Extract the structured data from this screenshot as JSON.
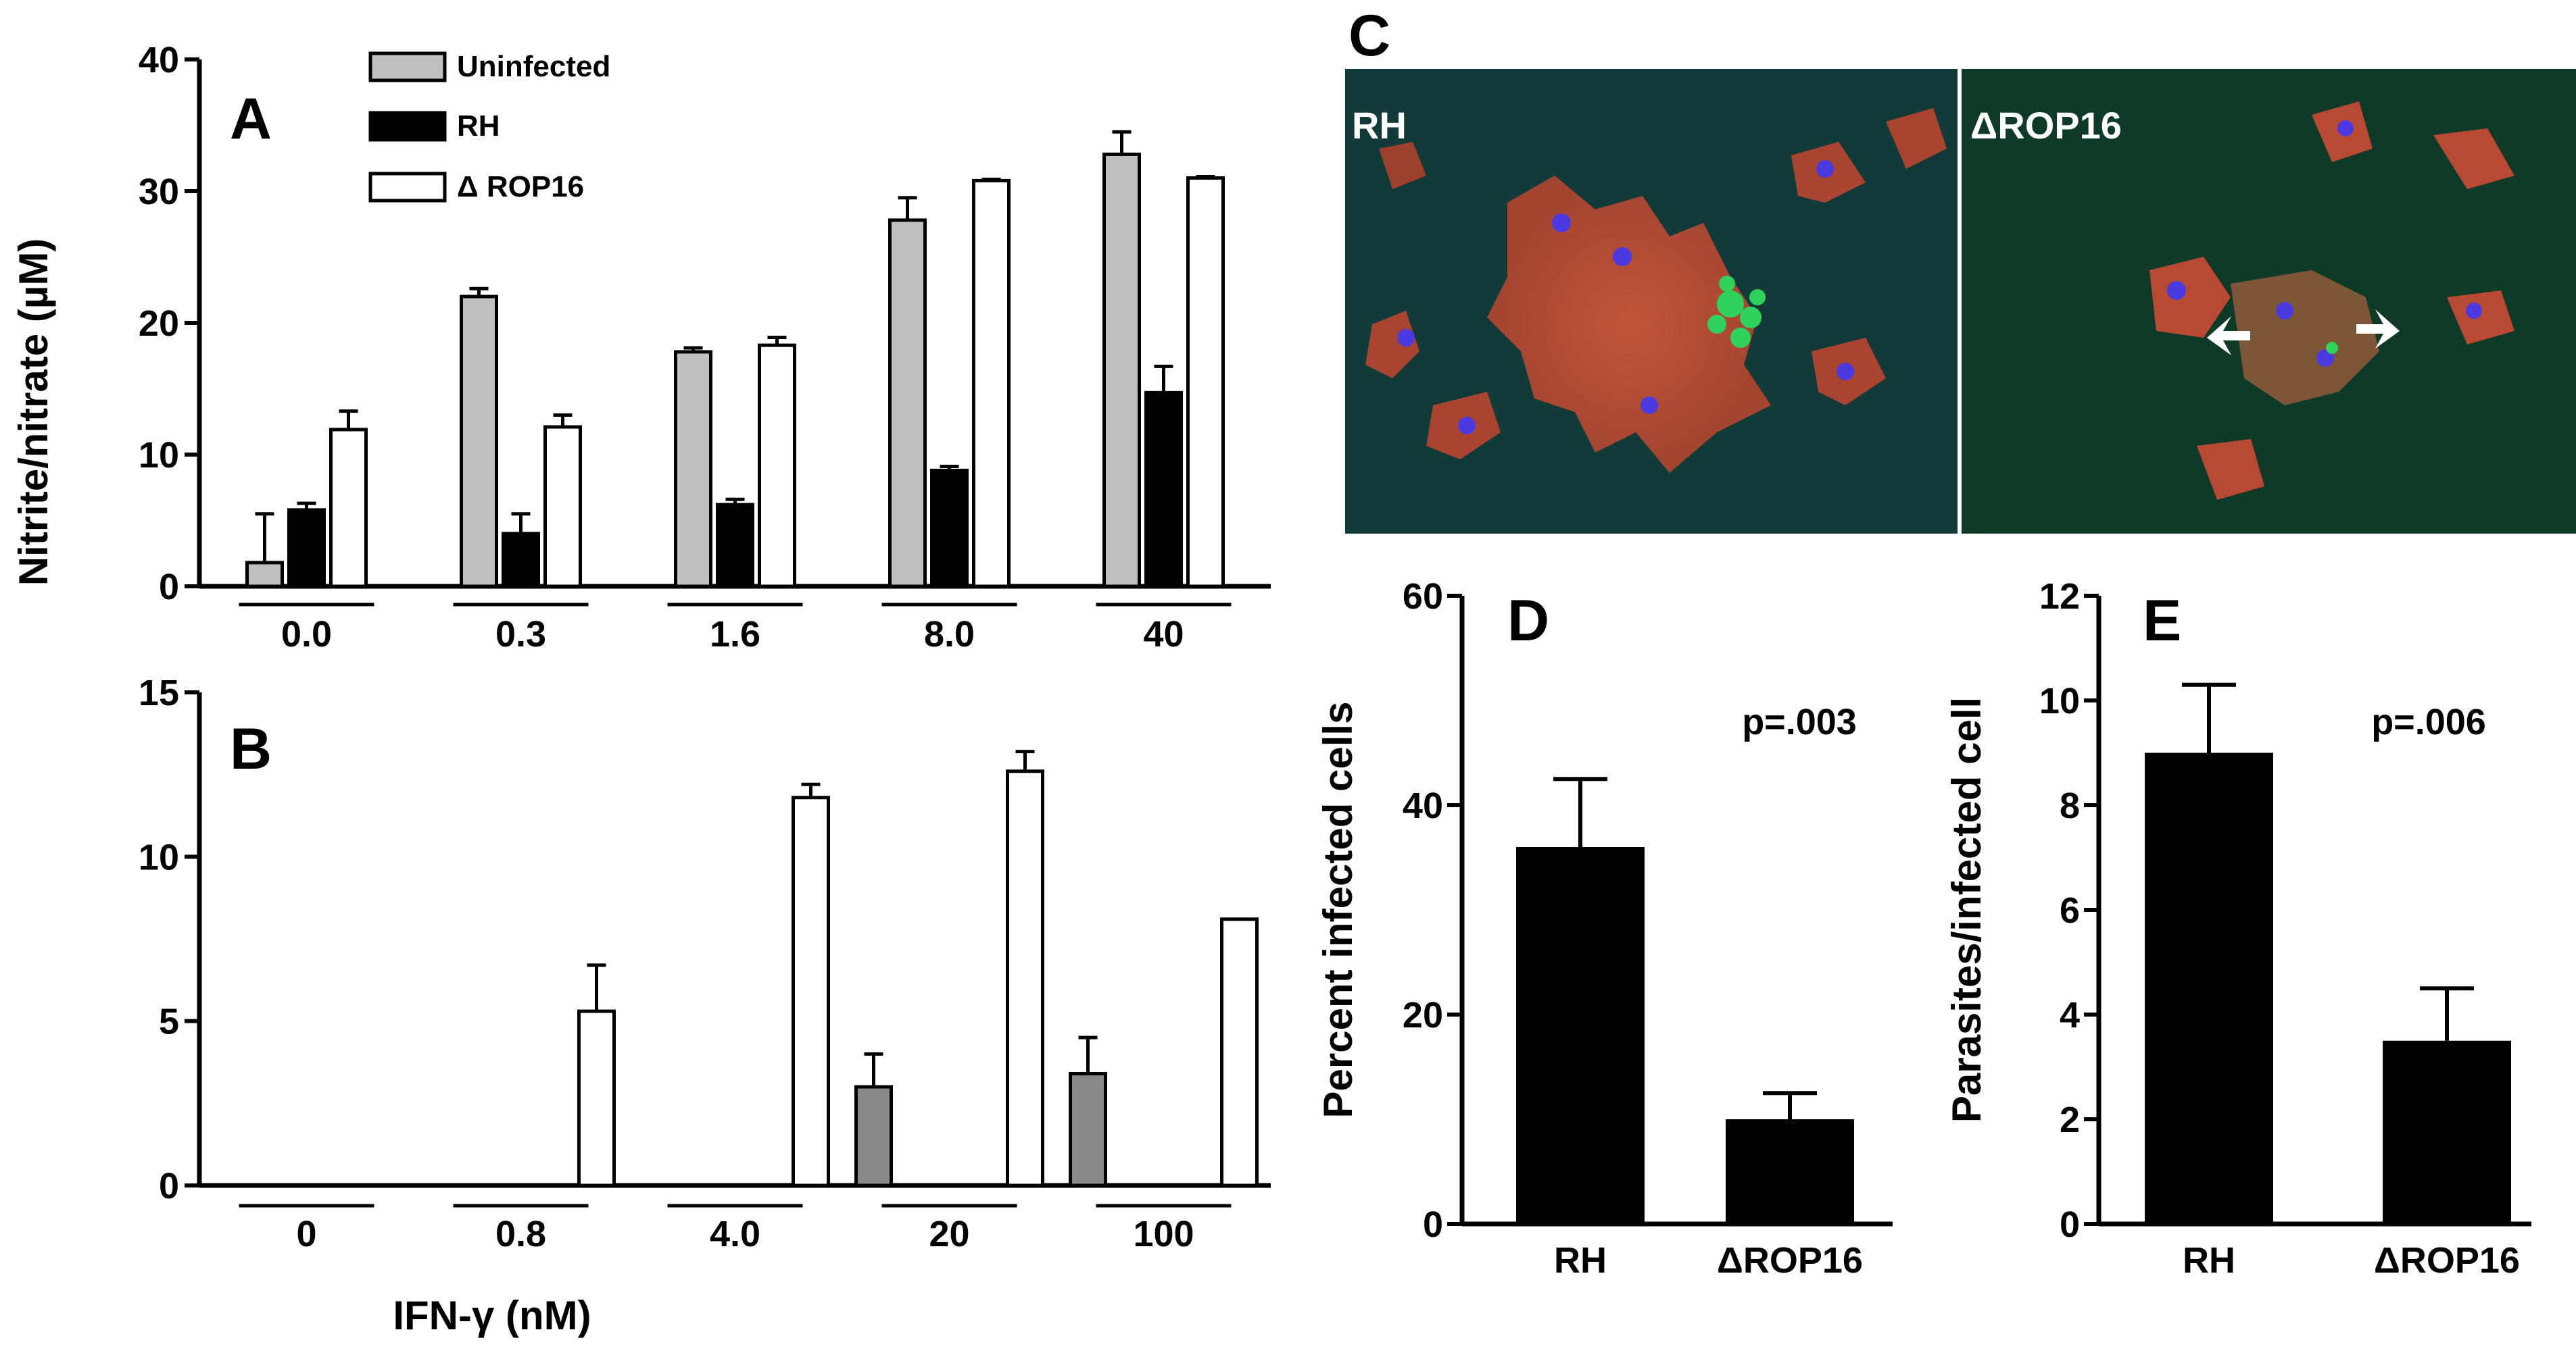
{
  "y_axis_title_ab": "Nitrite/nitrate (µM)",
  "x_axis_title_b": "IFN-γ (nM)",
  "legend": {
    "items": [
      {
        "label": "Uninfected",
        "color": "#c0c0c0"
      },
      {
        "label": "RH",
        "color": "#000000"
      },
      {
        "label": "Δ ROP16",
        "color": "#ffffff"
      }
    ]
  },
  "panel_c": {
    "letter": "C",
    "left_label": "RH",
    "right_label": "ΔROP16"
  },
  "chart_data": [
    {
      "panel": "A",
      "type": "bar",
      "categories": [
        "0.0",
        "0.3",
        "1.6",
        "8.0",
        "40"
      ],
      "series": [
        {
          "name": "Uninfected",
          "color": "#c0c0c0",
          "values": [
            1.8,
            22.0,
            17.8,
            27.8,
            32.8
          ],
          "errors": [
            3.7,
            0.6,
            0.3,
            1.7,
            1.7
          ]
        },
        {
          "name": "RH",
          "color": "#000000",
          "values": [
            5.8,
            4.0,
            6.2,
            8.8,
            14.7
          ],
          "errors": [
            0.5,
            1.5,
            0.4,
            0.3,
            2.0
          ]
        },
        {
          "name": "Δ ROP16",
          "color": "#ffffff",
          "values": [
            11.9,
            12.1,
            18.3,
            30.8,
            31.0
          ],
          "errors": [
            1.4,
            0.9,
            0.6,
            0.1,
            0.1
          ]
        }
      ],
      "ylim": [
        0,
        40
      ],
      "yticks": [
        0,
        10,
        20,
        30,
        40
      ],
      "ylabel": "Nitrite/nitrate (µM)",
      "legend_position": "top"
    },
    {
      "panel": "B",
      "type": "bar",
      "categories": [
        "0",
        "0.8",
        "4.0",
        "20",
        "100"
      ],
      "series": [
        {
          "color": "#888888",
          "values": [
            0,
            0,
            0,
            3.0,
            3.4
          ],
          "errors": [
            0,
            0,
            0,
            1.0,
            1.1
          ]
        },
        {
          "color": "#000000",
          "values": [
            0,
            0,
            0,
            0,
            0
          ],
          "errors": [
            0,
            0,
            0,
            0,
            0
          ]
        },
        {
          "color": "#ffffff",
          "values": [
            0,
            5.3,
            11.8,
            12.6,
            8.1
          ],
          "errors": [
            0,
            1.4,
            0.4,
            0.6,
            0
          ]
        }
      ],
      "ylim": [
        0,
        15
      ],
      "yticks": [
        0,
        5,
        10,
        15
      ],
      "xlabel": "IFN-γ (nM)"
    },
    {
      "panel": "D",
      "type": "bar",
      "categories": [
        "RH",
        "ΔROP16"
      ],
      "values": [
        36,
        10
      ],
      "errors": [
        6.5,
        2.5
      ],
      "ylim": [
        0,
        60
      ],
      "yticks": [
        0,
        20,
        40,
        60
      ],
      "ylabel": "Percent infected cells",
      "annotation": "p=.003"
    },
    {
      "panel": "E",
      "type": "bar",
      "categories": [
        "RH",
        "ΔROP16"
      ],
      "values": [
        9.0,
        3.5
      ],
      "errors": [
        1.3,
        1.0
      ],
      "ylim": [
        0,
        12
      ],
      "yticks": [
        0,
        2,
        4,
        6,
        8,
        10,
        12
      ],
      "ylabel": "Parasites/infected cell",
      "annotation": "p=.006"
    }
  ]
}
